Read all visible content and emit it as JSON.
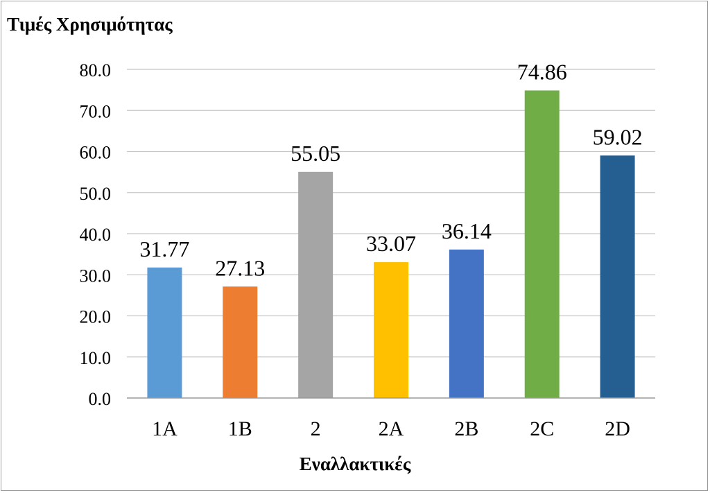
{
  "chart_data": {
    "type": "bar",
    "ylabel": "Τιμές Χρησιμότητας",
    "xlabel": "Εναλλακτικές",
    "categories": [
      "1A",
      "1B",
      "2",
      "2A",
      "2B",
      "2C",
      "2D"
    ],
    "values": [
      31.77,
      27.13,
      55.05,
      33.07,
      36.14,
      74.86,
      59.02
    ],
    "value_labels": [
      "31.77",
      "27.13",
      "55.05",
      "33.07",
      "36.14",
      "74.86",
      "59.02"
    ],
    "colors": [
      "#5b9bd5",
      "#ed7d31",
      "#a5a5a5",
      "#ffc000",
      "#4472c4",
      "#70ad47",
      "#255e91"
    ],
    "ylim": [
      0,
      80
    ],
    "yticks": [
      0,
      10,
      20,
      30,
      40,
      50,
      60,
      70,
      80
    ],
    "ytick_labels": [
      "0.0",
      "10.0",
      "20.0",
      "30.0",
      "40.0",
      "50.0",
      "60.0",
      "70.0",
      "80.0"
    ],
    "grid": true,
    "legend": "none"
  }
}
